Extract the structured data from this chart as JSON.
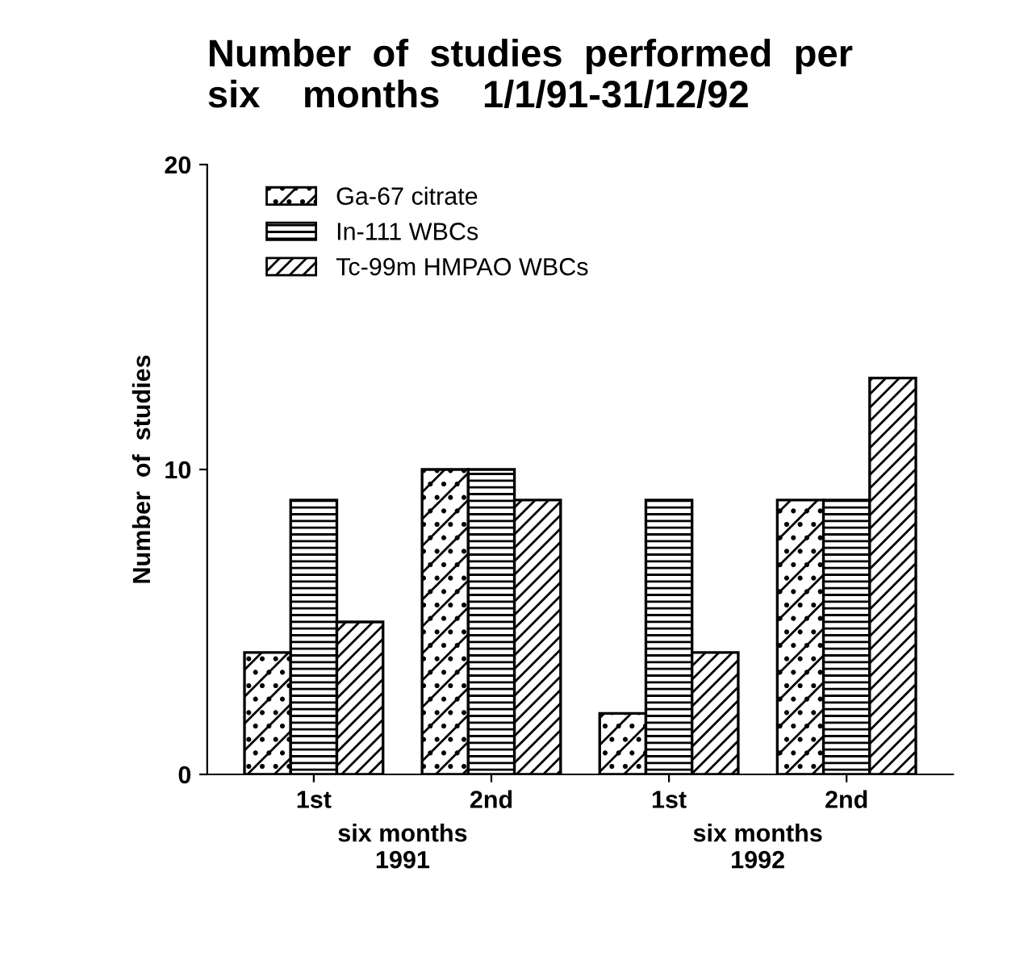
{
  "chart_data": {
    "type": "bar",
    "title": "Number  of  studies  performed  per\nsix    months    1/1/91-31/12/92",
    "ylabel": "Number  of  studies",
    "categories": [
      "1st",
      "2nd",
      "1st",
      "2nd"
    ],
    "series": [
      {
        "name": "Ga-67 citrate",
        "color": "#000000",
        "values": [
          4,
          10,
          2,
          9
        ]
      },
      {
        "name": "In-111 WBCs",
        "color": "#000000",
        "values": [
          9,
          10,
          9,
          9
        ]
      },
      {
        "name": "Tc-99m HMPAO WBCs",
        "color": "#000000",
        "values": [
          5,
          9,
          4,
          13
        ]
      }
    ],
    "ylim": [
      0,
      20
    ],
    "yticks": [
      0,
      10,
      20
    ],
    "grid": false,
    "legend": "top left",
    "annotations": [
      "six months\n1991",
      "six months\n1992"
    ]
  }
}
